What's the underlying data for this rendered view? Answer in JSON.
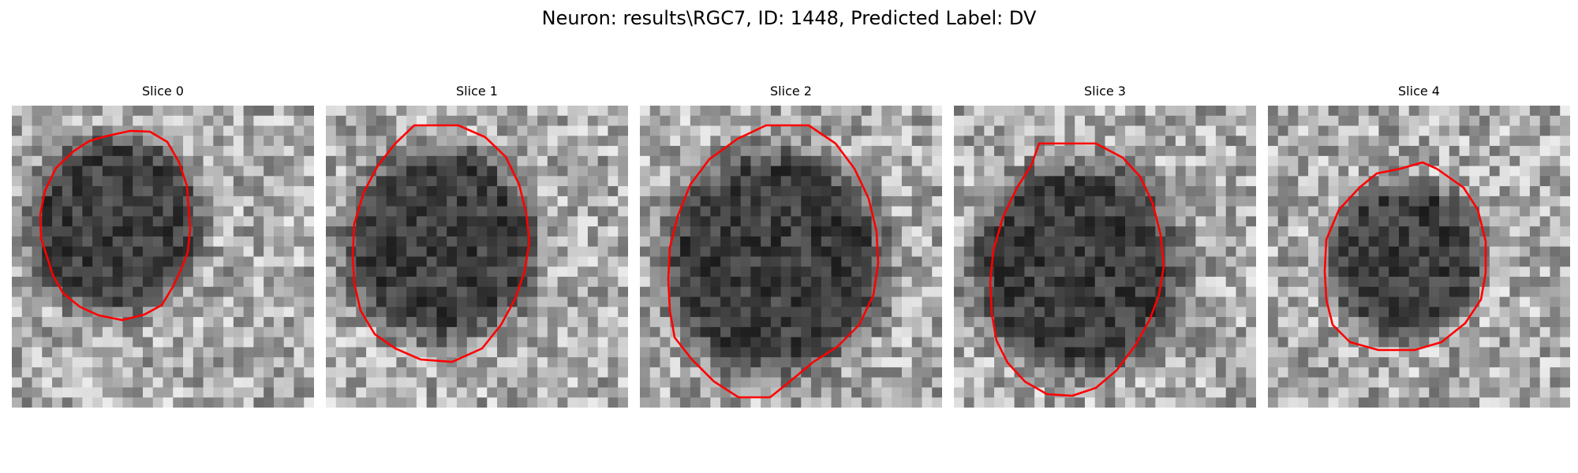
{
  "figure": {
    "title": "Neuron: results\\RGC7, ID: 1448, Predicted Label: DV"
  },
  "panels": [
    {
      "title": "Slice 0"
    },
    {
      "title": "Slice 1"
    },
    {
      "title": "Slice 2"
    },
    {
      "title": "Slice 3"
    },
    {
      "title": "Slice 4"
    }
  ],
  "colors": {
    "contour": "#ff0000",
    "background": "#ffffff"
  }
}
